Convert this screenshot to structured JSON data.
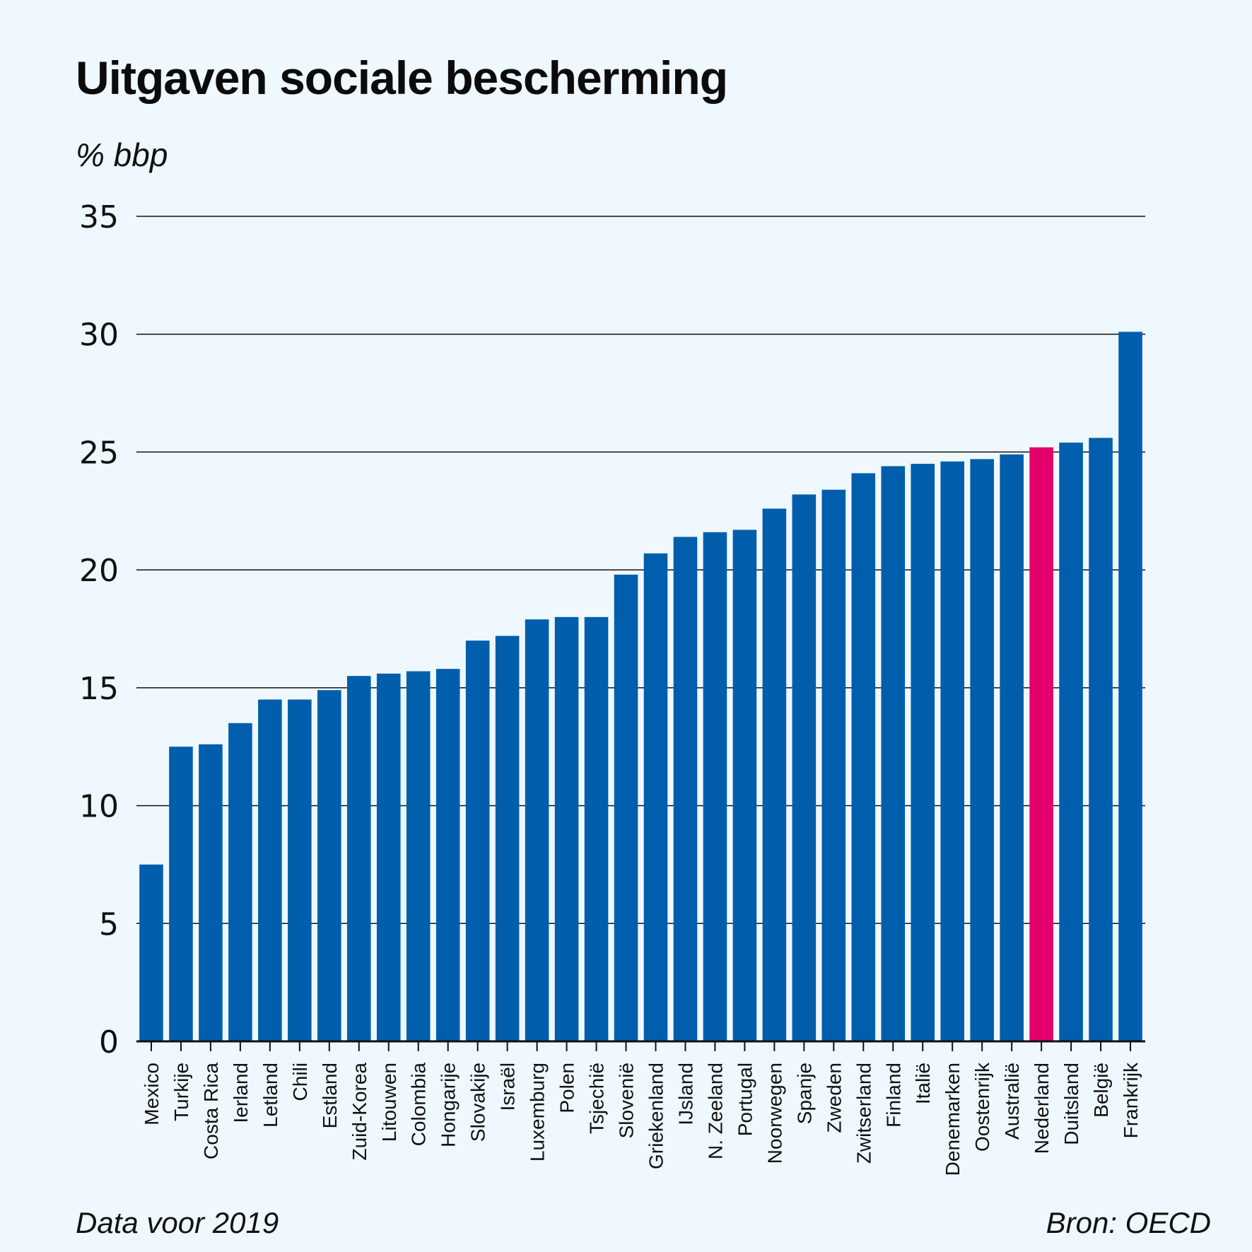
{
  "header": {
    "title": "Uitgaven sociale bescherming",
    "unit": "% bbp"
  },
  "footer": {
    "note": "Data voor 2019",
    "source": "Bron: OECD"
  },
  "colors": {
    "background": "#eef8fe",
    "bar": "#005eac",
    "highlight": "#e4006a"
  },
  "chart_data": {
    "type": "bar",
    "title": "Uitgaven sociale bescherming",
    "ylabel": "% bbp",
    "xlabel": "",
    "ylim": [
      0,
      35
    ],
    "yticks": [
      0,
      5,
      10,
      15,
      20,
      25,
      30,
      35
    ],
    "grid": true,
    "highlight": "Nederland",
    "categories": [
      "Mexico",
      "Turkije",
      "Costa Rica",
      "Ierland",
      "Letland",
      "Chili",
      "Estland",
      "Zuid-Korea",
      "Litouwen",
      "Colombia",
      "Hongarije",
      "Slovakije",
      "Israël",
      "Luxemburg",
      "Polen",
      "Tsjechië",
      "Slovenië",
      "Griekenland",
      "IJsland",
      "N. Zeeland",
      "Portugal",
      "Noorwegen",
      "Spanje",
      "Zweden",
      "Zwitserland",
      "Finland",
      "Italië",
      "Denemarken",
      "Oostenrijk",
      "Australië",
      "Nederland",
      "Duitsland",
      "België",
      "Frankrijk"
    ],
    "values": [
      7.5,
      12.5,
      12.6,
      13.5,
      14.5,
      14.5,
      14.9,
      15.5,
      15.6,
      15.7,
      15.8,
      17.0,
      17.2,
      17.9,
      18.0,
      18.0,
      19.8,
      20.7,
      21.4,
      21.6,
      21.7,
      22.6,
      23.2,
      23.4,
      24.1,
      24.4,
      24.5,
      24.6,
      24.7,
      24.9,
      25.2,
      25.4,
      25.6,
      30.1
    ]
  }
}
